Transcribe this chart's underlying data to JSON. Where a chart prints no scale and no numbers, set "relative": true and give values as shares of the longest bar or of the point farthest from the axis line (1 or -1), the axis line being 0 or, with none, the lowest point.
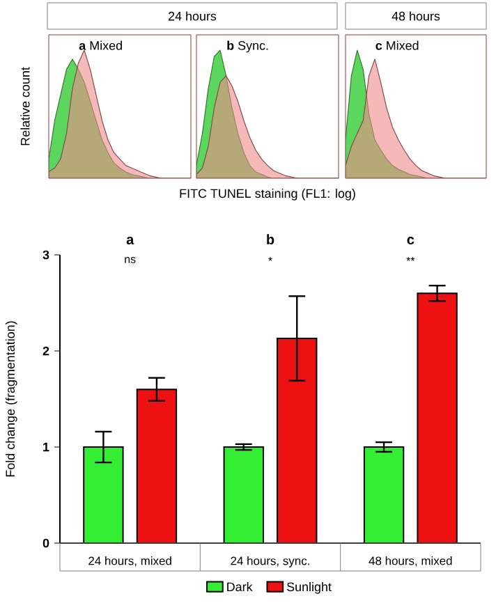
{
  "chart_data": [
    {
      "type": "area",
      "relative": true,
      "ylabel": "Relative count",
      "annotations": [
        "24 hours",
        "**a** Mixed"
      ],
      "categories": [
        null,
        null,
        null,
        null,
        null,
        null,
        null,
        null,
        null,
        null,
        null,
        null,
        null,
        null,
        null,
        null,
        null,
        null,
        null,
        null,
        null,
        null,
        null,
        null,
        null
      ],
      "series": [
        {
          "color": "#5cd65c",
          "values": [
            0.15,
            0.45,
            0.65,
            0.85,
            0.93,
            0.85,
            0.75,
            0.6,
            0.45,
            0.3,
            0.2,
            0.12,
            0.08,
            0.05,
            0.03,
            0.02,
            0.01,
            0,
            0,
            0,
            0,
            0,
            0,
            0,
            0
          ]
        },
        {
          "color": "#f08a8a",
          "values": [
            0.05,
            0.08,
            0.15,
            0.35,
            0.7,
            0.9,
            1.0,
            0.85,
            0.65,
            0.45,
            0.3,
            0.2,
            0.15,
            0.1,
            0.08,
            0.06,
            0.04,
            0.02,
            0.01,
            0,
            0,
            0,
            0,
            0,
            0
          ]
        }
      ]
    },
    {
      "type": "area",
      "relative": true,
      "xlabel": "FITC TUNEL staining (FL1: log)",
      "annotations": [
        "**b** Sync."
      ],
      "categories": [
        null,
        null,
        null,
        null,
        null,
        null,
        null,
        null,
        null,
        null,
        null,
        null,
        null,
        null,
        null,
        null,
        null,
        null,
        null,
        null,
        null,
        null,
        null,
        null,
        null
      ],
      "series": [
        {
          "color": "#5cd65c",
          "values": [
            0.1,
            0.35,
            0.7,
            0.95,
            1.0,
            0.8,
            0.55,
            0.35,
            0.2,
            0.1,
            0.05,
            0.03,
            0.01,
            0,
            0,
            0,
            0,
            0,
            0,
            0,
            0,
            0,
            0,
            0,
            0
          ]
        },
        {
          "color": "#f08a8a",
          "values": [
            0.03,
            0.08,
            0.25,
            0.55,
            0.75,
            0.8,
            0.72,
            0.6,
            0.45,
            0.32,
            0.22,
            0.15,
            0.1,
            0.06,
            0.04,
            0.02,
            0.01,
            0,
            0,
            0,
            0,
            0,
            0,
            0,
            0
          ]
        }
      ]
    },
    {
      "type": "area",
      "relative": true,
      "title": "48 hours",
      "annotations": [
        "**c** Mixed"
      ],
      "categories": [
        null,
        null,
        null,
        null,
        null,
        null,
        null,
        null,
        null,
        null,
        null,
        null,
        null,
        null,
        null,
        null,
        null,
        null,
        null,
        null,
        null,
        null,
        null,
        null,
        null
      ],
      "series": [
        {
          "color": "#5cd65c",
          "values": [
            0.3,
            0.8,
            1.0,
            0.85,
            0.5,
            0.3,
            0.22,
            0.15,
            0.1,
            0.07,
            0.05,
            0.03,
            0.02,
            0.01,
            0,
            0,
            0,
            0,
            0,
            0,
            0,
            0,
            0,
            0,
            0
          ]
        },
        {
          "color": "#f08a8a",
          "values": [
            0.1,
            0.25,
            0.35,
            0.45,
            0.8,
            0.93,
            0.75,
            0.55,
            0.4,
            0.3,
            0.22,
            0.15,
            0.1,
            0.06,
            0.04,
            0.02,
            0.01,
            0,
            0,
            0,
            0,
            0,
            0,
            0,
            0
          ]
        }
      ]
    },
    {
      "type": "bar",
      "ylabel": "Fold change (fragmentation)",
      "categories": [
        "24 hours, mixed",
        "24 hours, sync.",
        "48 hours, mixed"
      ],
      "ylim": [
        0,
        3
      ],
      "yticks": [
        0,
        1,
        2,
        3
      ],
      "legend": "bottom",
      "annotations": [
        "a",
        "ns",
        "b",
        "*",
        "c",
        "**"
      ],
      "series": [
        {
          "name": "Dark",
          "color": "#33ee33",
          "values": [
            1.0,
            1.0,
            1.0
          ],
          "errors": [
            0.16,
            0.03,
            0.05
          ]
        },
        {
          "name": "Sunlight",
          "color": "#ee1111",
          "values": [
            1.6,
            2.13,
            2.6
          ],
          "errors": [
            0.12,
            0.44,
            0.08
          ]
        }
      ]
    }
  ]
}
